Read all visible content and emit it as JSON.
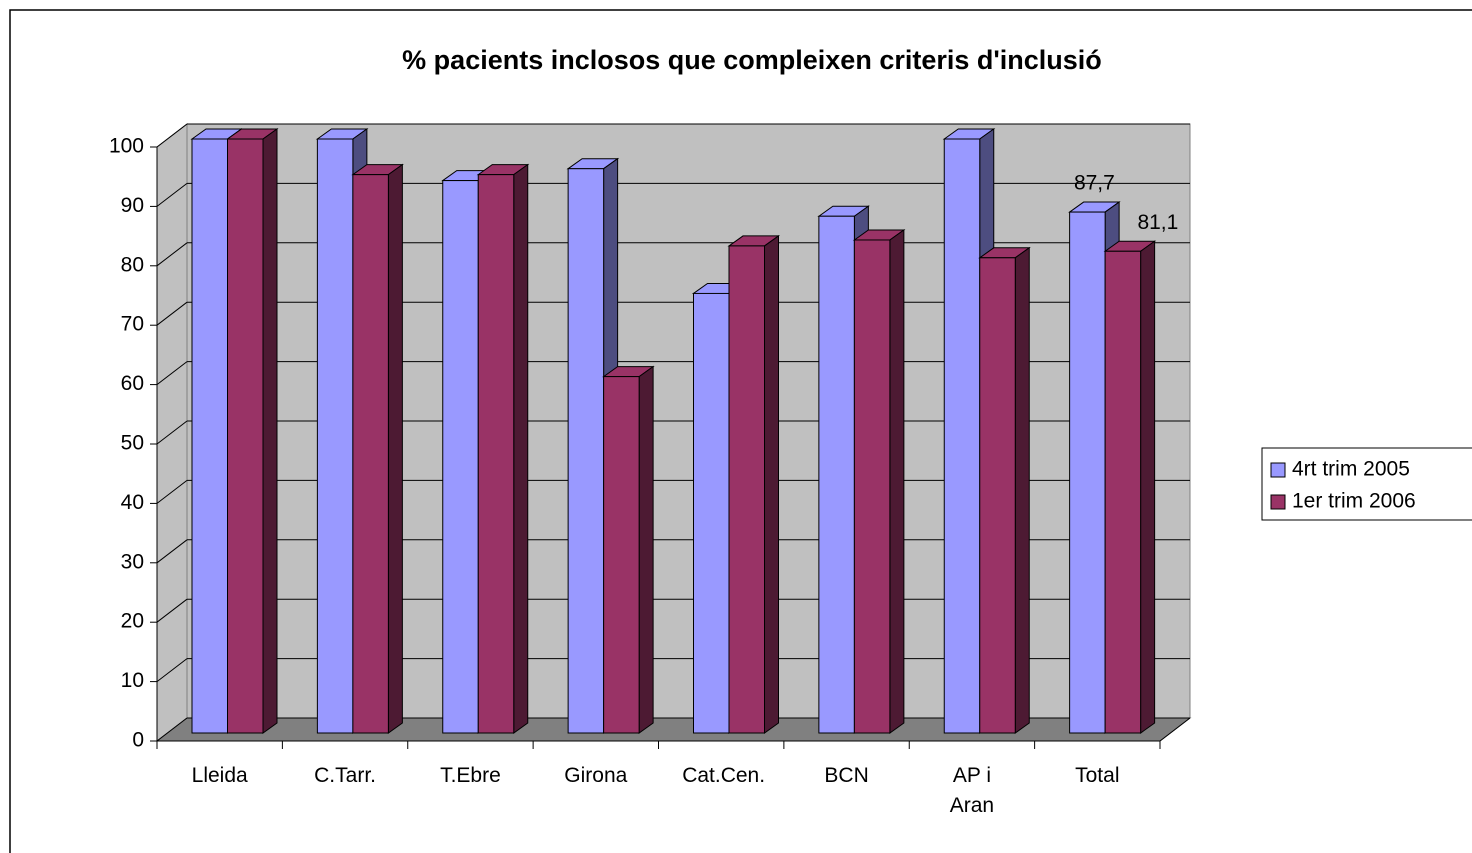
{
  "chart_data": {
    "type": "bar3d",
    "title": "% pacients inclosos que compleixen criteris d'inclusió",
    "categories": [
      "Lleida",
      "C.Tarr.",
      "T.Ebre",
      "Girona",
      "Cat.Cen.",
      "BCN",
      "AP i Aran",
      "Total"
    ],
    "series": [
      {
        "name": "4rt trim 2005",
        "color": "#9999ff",
        "values": [
          100,
          100,
          93,
          95,
          74,
          87,
          100,
          87.7
        ],
        "value_labels": [
          null,
          null,
          null,
          null,
          null,
          null,
          null,
          "87,7"
        ]
      },
      {
        "name": "1er trim 2006",
        "color": "#993366",
        "values": [
          100,
          94,
          94,
          60,
          82,
          83,
          80,
          81.1
        ],
        "value_labels": [
          null,
          null,
          null,
          null,
          null,
          null,
          null,
          "81,1"
        ]
      }
    ],
    "ylim": [
      0,
      100
    ],
    "yticks": [
      0,
      10,
      20,
      30,
      40,
      50,
      60,
      70,
      80,
      90,
      100
    ],
    "grid": true,
    "legend": "right"
  }
}
